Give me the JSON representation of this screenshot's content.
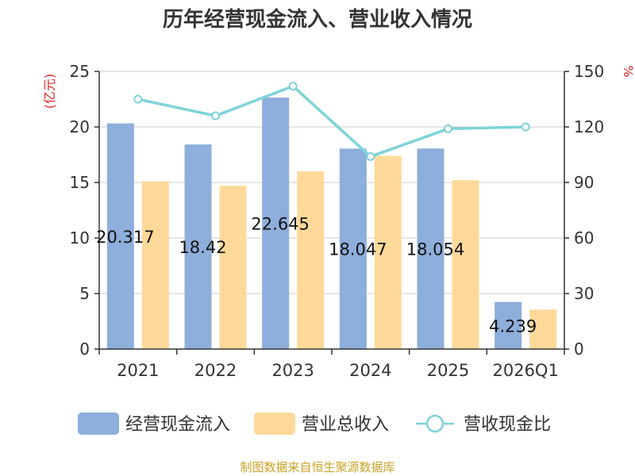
{
  "chart_data": {
    "type": "bar",
    "title": "历年经营现金流入、营业收入情况",
    "categories": [
      "2021",
      "2022",
      "2023",
      "2024",
      "2025",
      "2026Q1"
    ],
    "series": [
      {
        "name": "经营现金流入",
        "kind": "bar",
        "axis": "left",
        "color": "#8eaedb",
        "values": [
          20.317,
          18.42,
          22.645,
          18.047,
          18.054,
          4.239
        ],
        "labels": [
          "20.317",
          "18.42",
          "22.645",
          "18.047",
          "18.054",
          "4.239"
        ]
      },
      {
        "name": "营业总收入",
        "kind": "bar",
        "axis": "left",
        "color": "#ffd999",
        "values": [
          15.1,
          14.7,
          16.0,
          17.4,
          15.2,
          3.55
        ]
      },
      {
        "name": "营收现金比",
        "kind": "line",
        "axis": "right",
        "color": "#7fd3d8",
        "values": [
          135,
          126,
          142,
          104,
          119,
          120
        ]
      }
    ],
    "left_axis": {
      "label": "(亿元)",
      "min": 0,
      "max": 25,
      "ticks": [
        0,
        5,
        10,
        15,
        20,
        25
      ]
    },
    "right_axis": {
      "label": "%",
      "min": 0,
      "max": 150,
      "ticks": [
        0,
        30,
        60,
        90,
        120,
        150
      ]
    },
    "grid": true,
    "legend_position": "bottom",
    "source": "制图数据来自恒生聚源数据库"
  }
}
